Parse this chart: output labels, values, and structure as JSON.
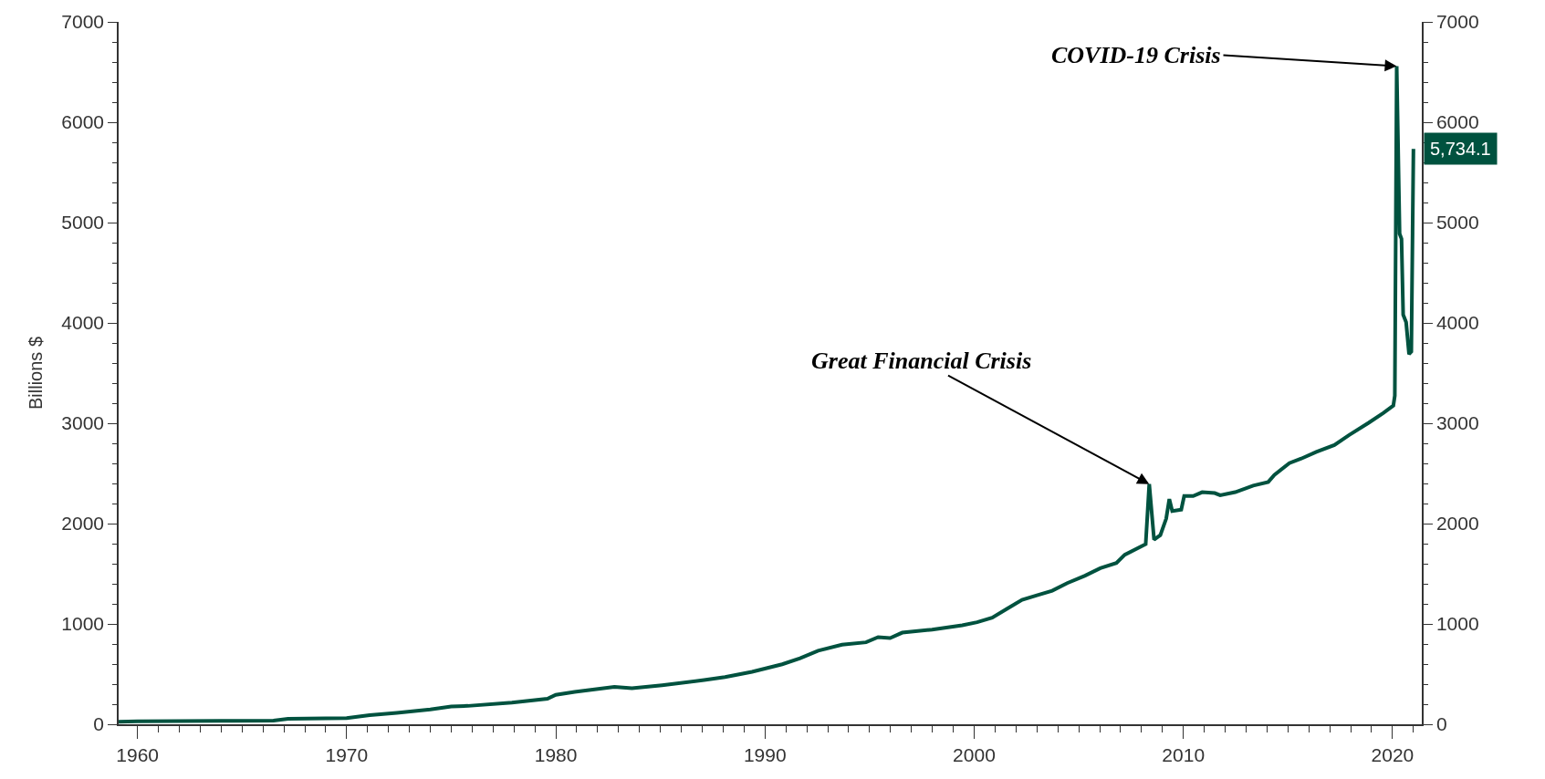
{
  "chart_data": {
    "type": "line",
    "ylabel": "Billions $",
    "x": [
      1959.1,
      1960,
      1962,
      1964,
      1966.5,
      1967.2,
      1969,
      1970,
      1971.1,
      1972.4,
      1974,
      1975,
      1975.8,
      1977.9,
      1979.6,
      1980,
      1980.9,
      1982.8,
      1983.64,
      1985.08,
      1987.09,
      1988.09,
      1989.38,
      1990.82,
      1991.68,
      1992.54,
      1993.68,
      1994.83,
      1995.41,
      1995.98,
      1996.56,
      1997.99,
      1999.43,
      2000.14,
      2000.86,
      2001.58,
      2002.29,
      2003.0,
      2003.73,
      2004.45,
      2005.3,
      2006.03,
      2006.8,
      2007.2,
      2008.2,
      2008.37,
      2008.6,
      2008.9,
      2009.18,
      2009.33,
      2009.47,
      2009.9,
      2010.04,
      2010.47,
      2010.9,
      2011.5,
      2011.76,
      2012.48,
      2013.34,
      2014.06,
      2014.35,
      2015.07,
      2015.64,
      2016.36,
      2017.22,
      2017.93,
      2018.86,
      2019.57,
      2020.04,
      2020.11,
      2020.2,
      2020.34,
      2020.43,
      2020.51,
      2020.65,
      2020.79,
      2020.9,
      2021.0
    ],
    "series": [
      {
        "color": "#00523f",
        "values": [
          25,
          30,
          32,
          34,
          36,
          55,
          58,
          61,
          90,
          113,
          148,
          178,
          183,
          216,
          255,
          294,
          323,
          372,
          359,
          389,
          440,
          470,
          523,
          598,
          658,
          733,
          793,
          817,
          868,
          859,
          913,
          943,
          987,
          1017,
          1062,
          1152,
          1241,
          1286,
          1331,
          1407,
          1481,
          1556,
          1607,
          1690,
          1795,
          2394,
          1840,
          1885,
          2049,
          2244,
          2125,
          2139,
          2274,
          2274,
          2313,
          2304,
          2283,
          2313,
          2379,
          2415,
          2484,
          2603,
          2648,
          2714,
          2783,
          2883,
          3005,
          3103,
          3176,
          3274,
          6559,
          4888,
          4838,
          4081,
          4007,
          3689,
          3714,
          5734.1
        ],
        "value_labels": [
          null,
          null,
          null,
          null,
          null,
          null,
          null,
          null,
          null,
          null,
          null,
          null,
          null,
          null,
          null,
          null,
          null,
          null,
          null,
          null,
          null,
          null,
          null,
          null,
          null,
          null,
          null,
          null,
          null,
          null,
          null,
          null,
          null,
          null,
          null,
          null,
          null,
          null,
          null,
          null,
          null,
          null,
          null,
          null,
          null,
          null,
          null,
          null,
          null,
          null,
          null,
          null,
          null,
          null,
          null,
          null,
          null,
          null,
          null,
          null,
          null,
          null,
          null,
          null,
          null,
          null,
          null,
          null,
          null,
          null,
          null,
          null,
          null,
          null,
          null,
          null,
          null,
          "5,734.1"
        ]
      }
    ],
    "xlim": [
      1959.1,
      2021.4
    ],
    "xticks": [
      1960,
      1970,
      1980,
      1990,
      2000,
      2010,
      2020
    ],
    "ylim": [
      0,
      7000
    ],
    "yticks": [
      0,
      1000,
      2000,
      3000,
      4000,
      5000,
      6000,
      7000
    ],
    "y2lim": [
      0,
      7000
    ],
    "y2ticks": [
      0,
      1000,
      2000,
      3000,
      4000,
      5000,
      6000,
      7000
    ],
    "annotations": [
      {
        "text": "Great Financial Crisis",
        "x": 2008.37,
        "y": 2394
      },
      {
        "text": "COVID-19 Crisis",
        "x": 2020.2,
        "y": 6559
      }
    ],
    "marker": "none",
    "line_style": "solid"
  }
}
